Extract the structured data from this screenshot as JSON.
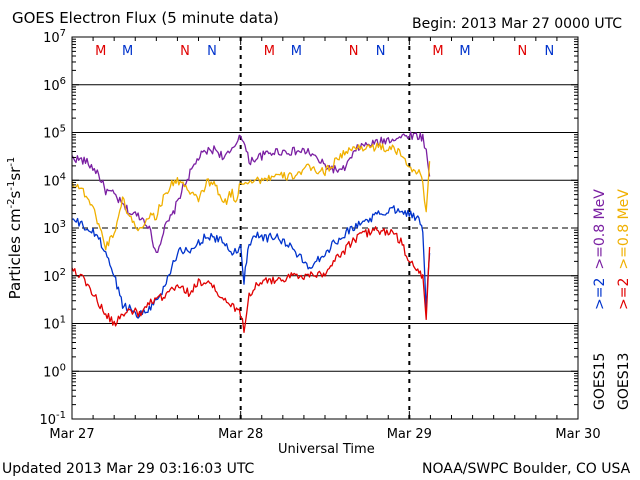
{
  "header": {
    "title": "GOES Electron Flux (5 minute data)",
    "begin": "Begin: 2013 Mar 27 0000 UTC"
  },
  "footer": {
    "updated": "Updated 2013 Mar 29 03:16:03 UTC",
    "credit": "NOAA/SWPC Boulder, CO USA"
  },
  "colors": {
    "red": "#e00000",
    "blue": "#0033cc",
    "purple": "#7a1fa2",
    "orange": "#f0b000",
    "black": "#000000"
  },
  "chart_data": {
    "type": "line",
    "title": "GOES Electron Flux (5 minute data)",
    "xlabel": "Universal Time",
    "ylabel_parts": {
      "base": "Particles cm",
      "e1": "-2",
      "s": "s",
      "e2": "-1",
      "sr": "sr",
      "e3": "-1"
    },
    "y_scale": "log",
    "ylim_exponent": [
      -1,
      7
    ],
    "y_ticks": [
      {
        "exp": 7,
        "base": "10",
        "sup": "7"
      },
      {
        "exp": 6,
        "base": "10",
        "sup": "6"
      },
      {
        "exp": 5,
        "base": "10",
        "sup": "5"
      },
      {
        "exp": 4,
        "base": "10",
        "sup": "4"
      },
      {
        "exp": 3,
        "base": "10",
        "sup": "3"
      },
      {
        "exp": 2,
        "base": "10",
        "sup": "2"
      },
      {
        "exp": 1,
        "base": "10",
        "sup": "1"
      },
      {
        "exp": 0,
        "base": "10",
        "sup": "0"
      },
      {
        "exp": -1,
        "base": "10",
        "sup": "-1"
      }
    ],
    "xlim_days": [
      0,
      3
    ],
    "x_ticks": [
      {
        "day": 0,
        "label": "Mar 27"
      },
      {
        "day": 1,
        "label": "Mar 28"
      },
      {
        "day": 2,
        "label": "Mar 29"
      },
      {
        "day": 3,
        "label": "Mar 30"
      }
    ],
    "threshold_exp": 3,
    "grid": "horizontal decades",
    "day_markers": [
      1,
      2
    ],
    "orbit_markers": [
      {
        "day": 0.17,
        "label": "M",
        "color": "red"
      },
      {
        "day": 0.33,
        "label": "M",
        "color": "blue"
      },
      {
        "day": 0.67,
        "label": "N",
        "color": "red"
      },
      {
        "day": 0.83,
        "label": "N",
        "color": "blue"
      },
      {
        "day": 1.17,
        "label": "M",
        "color": "red"
      },
      {
        "day": 1.33,
        "label": "M",
        "color": "blue"
      },
      {
        "day": 1.67,
        "label": "N",
        "color": "red"
      },
      {
        "day": 1.83,
        "label": "N",
        "color": "blue"
      },
      {
        "day": 2.17,
        "label": "M",
        "color": "red"
      },
      {
        "day": 2.33,
        "label": "M",
        "color": "blue"
      },
      {
        "day": 2.67,
        "label": "N",
        "color": "red"
      },
      {
        "day": 2.83,
        "label": "N",
        "color": "blue"
      }
    ],
    "legend": [
      {
        "sat": "GOES15",
        "thresholds": [
          {
            "text": ">=2",
            "color": "blue"
          },
          {
            "text": ">=0.8 MeV",
            "color": "purple"
          }
        ]
      },
      {
        "sat": "GOES13",
        "thresholds": [
          {
            "text": ">=2",
            "color": "red"
          },
          {
            "text": ">=0.8 MeV",
            "color": "orange"
          }
        ]
      }
    ],
    "series": [
      {
        "color": "purple",
        "days": [
          0,
          0.08,
          0.15,
          0.2,
          0.25,
          0.3,
          0.35,
          0.4,
          0.45,
          0.5,
          0.55,
          0.6,
          0.65,
          0.7,
          0.75,
          0.8,
          0.85,
          0.9,
          0.95,
          1.0,
          1.05,
          1.1,
          1.15,
          1.2,
          1.3,
          1.4,
          1.5,
          1.6,
          1.7,
          1.8,
          1.9,
          1.95,
          2.0,
          2.05,
          2.08,
          2.1,
          2.12
        ],
        "values": [
          30000,
          25000,
          15000,
          6000,
          5000,
          3000,
          2000,
          1800,
          1200,
          300,
          1000,
          2000,
          6000,
          14000,
          30000,
          40000,
          45000,
          30000,
          40000,
          100000,
          25000,
          30000,
          35000,
          40000,
          40000,
          40000,
          20000,
          15000,
          50000,
          60000,
          75000,
          80000,
          90000,
          85000,
          80000,
          40000,
          12000
        ]
      },
      {
        "color": "orange",
        "days": [
          0,
          0.05,
          0.1,
          0.15,
          0.2,
          0.25,
          0.3,
          0.35,
          0.4,
          0.45,
          0.5,
          0.55,
          0.6,
          0.65,
          0.7,
          0.75,
          0.8,
          0.85,
          0.9,
          0.95,
          0.97,
          1.0,
          1.02,
          1.05,
          1.1,
          1.2,
          1.3,
          1.4,
          1.5,
          1.6,
          1.7,
          1.8,
          1.9,
          1.95,
          2.0,
          2.05,
          2.08,
          2.1,
          2.12
        ],
        "values": [
          9000,
          7000,
          4000,
          1500,
          400,
          800,
          4000,
          1500,
          900,
          1800,
          1800,
          5000,
          9000,
          10000,
          5000,
          4000,
          9000,
          8000,
          3000,
          6000,
          3000,
          10000,
          9000,
          10000,
          10000,
          12000,
          12000,
          18000,
          15000,
          35000,
          50000,
          50000,
          45000,
          35000,
          20000,
          15000,
          10000,
          2000,
          25000
        ]
      },
      {
        "color": "blue",
        "days": [
          0,
          0.05,
          0.1,
          0.15,
          0.2,
          0.25,
          0.3,
          0.35,
          0.4,
          0.45,
          0.5,
          0.55,
          0.6,
          0.65,
          0.7,
          0.75,
          0.8,
          0.85,
          0.9,
          0.95,
          1.0,
          1.02,
          1.05,
          1.1,
          1.15,
          1.2,
          1.3,
          1.4,
          1.5,
          1.6,
          1.7,
          1.8,
          1.9,
          1.95,
          2.0,
          2.05,
          2.08,
          2.1,
          2.12
        ],
        "values": [
          1500,
          1200,
          900,
          700,
          300,
          100,
          25,
          20,
          15,
          20,
          30,
          60,
          200,
          350,
          300,
          500,
          700,
          600,
          500,
          300,
          400,
          80,
          500,
          800,
          600,
          700,
          400,
          150,
          300,
          700,
          1200,
          1800,
          2500,
          2500,
          2000,
          1500,
          1000,
          20,
          300
        ]
      },
      {
        "color": "red",
        "days": [
          0,
          0.05,
          0.1,
          0.15,
          0.2,
          0.25,
          0.3,
          0.35,
          0.4,
          0.45,
          0.5,
          0.55,
          0.6,
          0.65,
          0.7,
          0.75,
          0.8,
          0.85,
          0.9,
          0.95,
          1.0,
          1.02,
          1.05,
          1.1,
          1.2,
          1.3,
          1.4,
          1.5,
          1.6,
          1.7,
          1.8,
          1.9,
          1.95,
          2.0,
          2.05,
          2.08,
          2.1,
          2.12
        ],
        "values": [
          150,
          100,
          60,
          30,
          15,
          10,
          15,
          20,
          15,
          25,
          30,
          40,
          50,
          60,
          40,
          80,
          70,
          50,
          30,
          25,
          15,
          8,
          40,
          70,
          80,
          100,
          100,
          120,
          300,
          700,
          900,
          800,
          500,
          200,
          120,
          100,
          12,
          400
        ]
      }
    ]
  }
}
